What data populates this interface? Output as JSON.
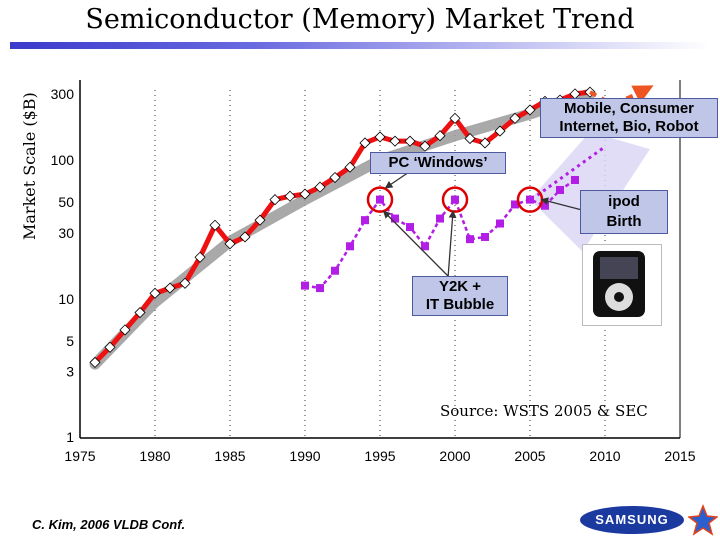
{
  "page": {
    "title": "Semiconductor (Memory) Market Trend",
    "source": "Source: WSTS 2005 & SEC",
    "credit": "C. Kim, 2006 VLDB Conf.",
    "logo_text": "SAMSUNG"
  },
  "callouts": {
    "mobile": "Mobile, Consumer\nInternet, Bio, Robot",
    "windows": "PC ‘Windows’",
    "ipod": "ipod\nBirth",
    "y2k": "Y2K +\nIT Bubble"
  },
  "colors": {
    "market": "#ee1111",
    "trend": "#9a9a9a",
    "growth": "#b21ee6",
    "forecast": "#ee5522",
    "callout_bg": "#bfc6e8",
    "circle": "#dd0000"
  },
  "icons": [
    "samsung-logo",
    "star-logo-icon",
    "ipod-image"
  ],
  "chart_data": {
    "type": "line",
    "title": "Semiconductor (Memory) Market Trend",
    "xlabel": "",
    "ylabel": "Market Scale ($B)",
    "x_ticks": [
      1975,
      1980,
      1985,
      1990,
      1995,
      2000,
      2005,
      2010,
      2015
    ],
    "y_ticks": [
      1,
      3,
      5,
      10,
      30,
      50,
      100,
      300
    ],
    "y_scale": "log",
    "xlim": [
      1975,
      2015
    ],
    "ylim": [
      1,
      320
    ],
    "grid": true,
    "series": [
      {
        "name": "",
        "role": "market size",
        "x": [
          1976,
          1977,
          1978,
          1979,
          1980,
          1981,
          1982,
          1983,
          1984,
          1985,
          1986,
          1987,
          1988,
          1989,
          1990,
          1991,
          1992,
          1993,
          1994,
          1995,
          1996,
          1997,
          1998,
          1999,
          2000,
          2001,
          2002,
          2003,
          2004,
          2005,
          2006,
          2007,
          2008,
          2009
        ],
        "y": [
          3.5,
          4.5,
          6,
          8,
          11,
          12,
          13,
          20,
          34,
          25,
          28,
          37,
          52,
          55,
          57,
          64,
          75,
          89,
          133,
          147,
          137,
          137,
          126,
          150,
          200,
          143,
          133,
          162,
          200,
          230,
          265,
          271,
          300,
          309
        ]
      },
      {
        "name": "",
        "role": "growth",
        "x": [
          1990,
          1991,
          1992,
          1993,
          1994,
          1995,
          1996,
          1997,
          1998,
          1999,
          2000,
          2001,
          2002,
          2003,
          2004,
          2005,
          2006,
          2007,
          2008
        ],
        "y": [
          12.5,
          12,
          16,
          24,
          37,
          52,
          38,
          33,
          24,
          38,
          52,
          27,
          28,
          35,
          48,
          52,
          47,
          61,
          72
        ]
      },
      {
        "name": "",
        "role": "forecast",
        "x": [
          2009,
          2010,
          2011,
          2012,
          2013
        ],
        "y": [
          309,
          270,
          265,
          295,
          335
        ]
      }
    ],
    "annotations": [
      {
        "text": "Mobile, Consumer Internet, Bio, Robot"
      },
      {
        "text": "PC ‘Windows’",
        "year": 1995
      },
      {
        "text": "Y2K + IT Bubble",
        "year": 2000
      },
      {
        "text": "ipod Birth",
        "year": 2005
      }
    ]
  }
}
